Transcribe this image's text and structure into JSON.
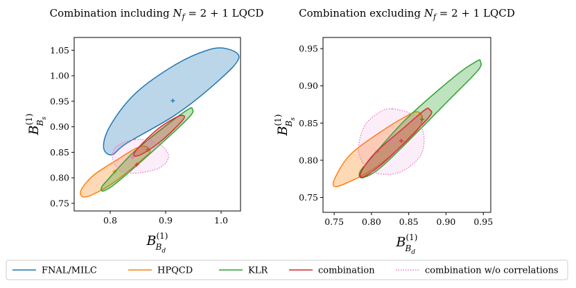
{
  "chart_data": [
    {
      "type": "contour",
      "title": "Combination including N_f = 2 + 1 LQCD",
      "title_parts": {
        "prefix": "Combination including",
        "symbol": "N",
        "symbol_sub": "f",
        "rest": " = 2 + 1 LQCD"
      },
      "xlabel": {
        "base": "B",
        "sub": "B",
        "subsub": "d",
        "sup": "(1)"
      },
      "ylabel": {
        "base": "B",
        "sub": "B",
        "subsub": "s",
        "sup": "(1)"
      },
      "xlim": [
        0.735,
        1.035
      ],
      "ylim": [
        0.735,
        1.075
      ],
      "xticks": [
        "0.8",
        "0.9",
        "1.0"
      ],
      "yticks": [
        "0.75",
        "0.80",
        "0.85",
        "0.90",
        "0.95",
        "1.00",
        "1.05"
      ],
      "xtick_values": [
        0.8,
        0.9,
        1.0
      ],
      "ytick_values": [
        0.75,
        0.8,
        0.85,
        0.9,
        0.95,
        1.0,
        1.05
      ],
      "grid": false,
      "series": [
        {
          "name": "FNAL/MILC",
          "center": [
            0.913,
            0.951
          ],
          "outline": [
            [
              1.01,
              1.053
            ],
            [
              1.032,
              1.035
            ],
            [
              0.998,
              0.993
            ],
            [
              0.92,
              0.925
            ],
            [
              0.83,
              0.868
            ],
            [
              0.803,
              0.845
            ],
            [
              0.788,
              0.86
            ],
            [
              0.8,
              0.902
            ],
            [
              0.845,
              0.965
            ],
            [
              0.915,
              1.02
            ],
            [
              0.975,
              1.05
            ]
          ]
        },
        {
          "name": "HPQCD",
          "center": [
            0.808,
            0.812
          ],
          "outline": [
            [
              0.862,
              0.862
            ],
            [
              0.872,
              0.852
            ],
            [
              0.86,
              0.838
            ],
            [
              0.808,
              0.792
            ],
            [
              0.768,
              0.767
            ],
            [
              0.75,
              0.763
            ],
            [
              0.748,
              0.777
            ],
            [
              0.77,
              0.805
            ],
            [
              0.812,
              0.835
            ],
            [
              0.845,
              0.857
            ]
          ]
        },
        {
          "name": "KLR",
          "center": [
            0.868,
            0.855
          ],
          "outline": [
            [
              0.948,
              0.935
            ],
            [
              0.945,
              0.922
            ],
            [
              0.905,
              0.88
            ],
            [
              0.82,
              0.798
            ],
            [
              0.79,
              0.775
            ],
            [
              0.784,
              0.78
            ],
            [
              0.797,
              0.798
            ],
            [
              0.845,
              0.853
            ],
            [
              0.912,
              0.912
            ],
            [
              0.942,
              0.935
            ]
          ]
        },
        {
          "name": "combination",
          "center": [
            0.848,
            0.826
          ],
          "outline": [
            [
              0.932,
              0.922
            ],
            [
              0.93,
              0.912
            ],
            [
              0.895,
              0.875
            ],
            [
              0.86,
              0.848
            ],
            [
              0.843,
              0.843
            ],
            [
              0.85,
              0.858
            ],
            [
              0.885,
              0.895
            ],
            [
              0.918,
              0.918
            ]
          ]
        },
        {
          "name": "combination w/o correlations",
          "center": [
            0.84,
            0.84
          ],
          "outline": [
            [
              0.845,
              0.875
            ],
            [
              0.885,
              0.868
            ],
            [
              0.905,
              0.845
            ],
            [
              0.893,
              0.822
            ],
            [
              0.855,
              0.81
            ],
            [
              0.822,
              0.812
            ],
            [
              0.805,
              0.835
            ],
            [
              0.81,
              0.86
            ]
          ]
        }
      ]
    },
    {
      "type": "contour",
      "title": "Combination excluding N_f = 2 + 1 LQCD",
      "title_parts": {
        "prefix": "Combination excluding",
        "symbol": "N",
        "symbol_sub": "f",
        "rest": " = 2 + 1 LQCD"
      },
      "xlabel": {
        "base": "B",
        "sub": "B",
        "subsub": "d",
        "sup": "(1)"
      },
      "ylabel": {
        "base": "B",
        "sub": "B",
        "subsub": "s",
        "sup": "(1)"
      },
      "xlim": [
        0.735,
        0.96
      ],
      "ylim": [
        0.73,
        0.965
      ],
      "xticks": [
        "0.75",
        "0.80",
        "0.85",
        "0.90",
        "0.95"
      ],
      "yticks": [
        "0.75",
        "0.80",
        "0.85",
        "0.90",
        "0.95"
      ],
      "xtick_values": [
        0.75,
        0.8,
        0.85,
        0.9,
        0.95
      ],
      "ytick_values": [
        0.75,
        0.8,
        0.85,
        0.9,
        0.95
      ],
      "grid": false,
      "series": [
        {
          "name": "HPQCD",
          "center": [
            0.808,
            0.812
          ],
          "outline": [
            [
              0.862,
              0.865
            ],
            [
              0.868,
              0.855
            ],
            [
              0.857,
              0.835
            ],
            [
              0.808,
              0.792
            ],
            [
              0.768,
              0.77
            ],
            [
              0.75,
              0.765
            ],
            [
              0.752,
              0.778
            ],
            [
              0.772,
              0.808
            ],
            [
              0.812,
              0.838
            ],
            [
              0.848,
              0.86
            ]
          ]
        },
        {
          "name": "KLR",
          "center": [
            0.868,
            0.855
          ],
          "outline": [
            [
              0.946,
              0.933
            ],
            [
              0.943,
              0.921
            ],
            [
              0.905,
              0.882
            ],
            [
              0.82,
              0.797
            ],
            [
              0.79,
              0.777
            ],
            [
              0.784,
              0.783
            ],
            [
              0.797,
              0.8
            ],
            [
              0.846,
              0.855
            ],
            [
              0.912,
              0.913
            ],
            [
              0.941,
              0.933
            ]
          ]
        },
        {
          "name": "combination",
          "center": [
            0.84,
            0.826
          ],
          "outline": [
            [
              0.878,
              0.868
            ],
            [
              0.88,
              0.862
            ],
            [
              0.865,
              0.845
            ],
            [
              0.82,
              0.8
            ],
            [
              0.79,
              0.778
            ],
            [
              0.786,
              0.784
            ],
            [
              0.805,
              0.81
            ],
            [
              0.845,
              0.845
            ],
            [
              0.872,
              0.868
            ]
          ]
        },
        {
          "name": "combination w/o correlations",
          "center": [
            0.828,
            0.826
          ],
          "outline": [
            [
              0.828,
              0.869
            ],
            [
              0.857,
              0.86
            ],
            [
              0.87,
              0.835
            ],
            [
              0.865,
              0.805
            ],
            [
              0.835,
              0.783
            ],
            [
              0.8,
              0.785
            ],
            [
              0.783,
              0.81
            ],
            [
              0.79,
              0.845
            ],
            [
              0.81,
              0.864
            ]
          ]
        }
      ]
    }
  ],
  "legend": {
    "position": "bottom",
    "items": [
      {
        "label": "FNAL/MILC",
        "color": "#1f77b4",
        "style": "solid"
      },
      {
        "label": "HPQCD",
        "color": "#ff7f0e",
        "style": "solid"
      },
      {
        "label": "KLR",
        "color": "#2ca02c",
        "style": "solid"
      },
      {
        "label": "combination",
        "color": "#d62728",
        "style": "solid"
      },
      {
        "label": "combination w/o correlations",
        "color": "#e377c2",
        "style": "dotted"
      }
    ]
  },
  "series_colors": {
    "FNAL/MILC": "#1f77b4",
    "HPQCD": "#ff7f0e",
    "KLR": "#2ca02c",
    "combination": "#d62728",
    "combination w/o correlations": "#e377c2"
  }
}
